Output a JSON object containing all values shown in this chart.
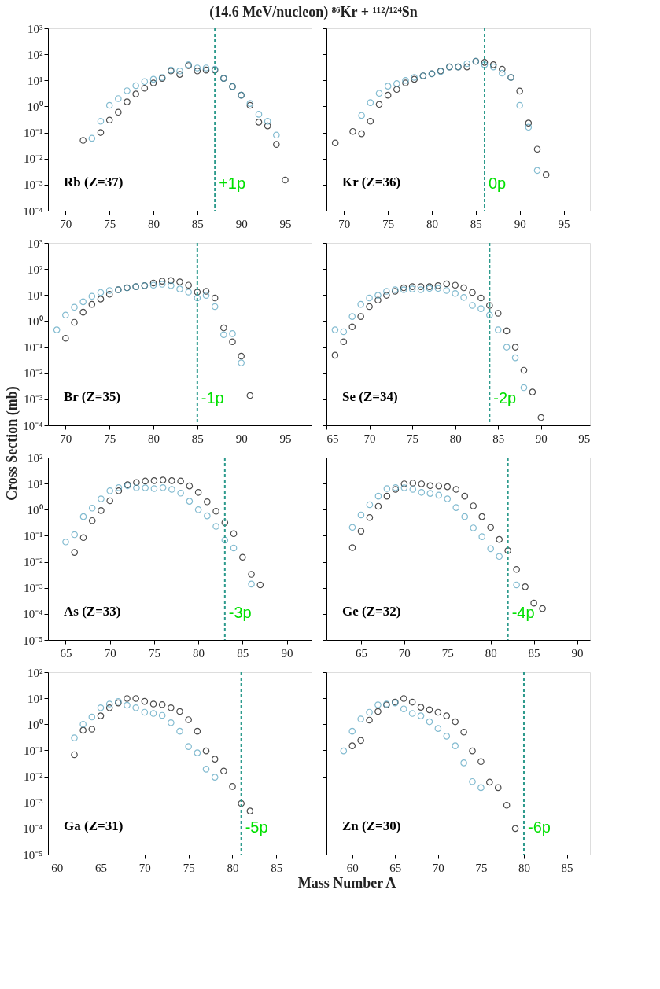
{
  "chart_data": [
    {
      "type": "scatter",
      "title": "(14.6 MeV/nucleon) ⁸⁶Kr + ¹¹²/¹²⁴Sn",
      "marker": "circle",
      "log": "y",
      "xlim": [
        68,
        98
      ],
      "xticks": [
        70,
        75,
        80,
        85,
        90,
        95
      ],
      "ylim": [
        0.0001,
        1000
      ],
      "yticks": [
        {
          "value": 0.0001,
          "label": "10⁻⁴"
        },
        {
          "value": 0.001,
          "label": "10⁻³"
        },
        {
          "value": 0.01,
          "label": "10⁻²"
        },
        {
          "value": 0.1,
          "label": "10⁻¹"
        },
        {
          "value": 1,
          "label": "10⁰"
        },
        {
          "value": 10,
          "label": "10¹"
        },
        {
          "value": 100,
          "label": "10²"
        },
        {
          "value": 1000,
          "label": "10³"
        }
      ],
      "ref_lines": [
        {
          "axis": "x",
          "value": 87,
          "label": "+1p",
          "color": "#2c9a8c",
          "line_style": "dashed"
        }
      ],
      "annotations": [
        "Rb (Z=37)"
      ],
      "series": [
        {
          "color": "#000000",
          "x": [
            72,
            74,
            75,
            76,
            77,
            78,
            79,
            80,
            81,
            82,
            83,
            84,
            85,
            86,
            87,
            88,
            89,
            90,
            91,
            92,
            93,
            94,
            95
          ],
          "values": [
            0.05,
            0.1,
            0.3,
            0.6,
            1.5,
            3,
            5,
            8,
            12,
            23,
            17,
            37,
            23,
            25,
            25,
            12,
            5.8,
            2.7,
            1.1,
            0.25,
            0.18,
            0.035,
            0.0015
          ]
        },
        {
          "color": "#4f9fbd",
          "x": [
            73,
            74,
            75,
            76,
            77,
            78,
            79,
            80,
            81,
            82,
            83,
            84,
            85,
            86,
            87,
            88,
            89,
            90,
            91,
            92,
            93,
            94
          ],
          "values": [
            0.06,
            0.27,
            1.1,
            2,
            4,
            6.3,
            9,
            11,
            13,
            25,
            23,
            40,
            30,
            30,
            27,
            12,
            5.8,
            2.7,
            1.3,
            0.5,
            0.27,
            0.08
          ]
        }
      ]
    },
    {
      "type": "scatter",
      "marker": "circle",
      "log": "y",
      "tick_labels": "x",
      "xlim": [
        68,
        98
      ],
      "xticks": [
        70,
        75,
        80,
        85,
        90,
        95
      ],
      "ylim": [
        0.0001,
        1000
      ],
      "yticks": [
        {
          "value": 0.0001,
          "label": null
        },
        {
          "value": 0.001,
          "label": null
        },
        {
          "value": 0.01,
          "label": null
        },
        {
          "value": 0.1,
          "label": null
        },
        {
          "value": 1,
          "label": null
        },
        {
          "value": 10,
          "label": null
        },
        {
          "value": 100,
          "label": null
        },
        {
          "value": 1000,
          "label": null
        }
      ],
      "ref_lines": [
        {
          "axis": "x",
          "value": 86,
          "label": "0p",
          "color": "#2c9a8c",
          "line_style": "dashed"
        }
      ],
      "annotations": [
        "Kr (Z=36)"
      ],
      "series": [
        {
          "color": "#000000",
          "x": [
            69,
            71,
            72,
            73,
            74,
            75,
            76,
            77,
            78,
            79,
            80,
            81,
            82,
            83,
            84,
            85,
            86,
            87,
            88,
            89,
            90,
            91,
            92,
            93
          ],
          "values": [
            0.04,
            0.11,
            0.09,
            0.27,
            1.2,
            2.7,
            4.5,
            8,
            11,
            15,
            18,
            23,
            33,
            33,
            33,
            54,
            49,
            40,
            27,
            13,
            3.9,
            0.23,
            0.023,
            0.0024
          ]
        },
        {
          "color": "#4f9fbd",
          "x": [
            72,
            73,
            74,
            75,
            76,
            77,
            78,
            79,
            80,
            81,
            82,
            83,
            84,
            85,
            86,
            87,
            88,
            89,
            90,
            91,
            92
          ],
          "values": [
            0.45,
            1.4,
            3.2,
            6,
            7.5,
            10,
            13,
            15,
            18,
            22,
            33,
            33,
            44,
            54,
            40,
            33,
            19,
            13,
            1.1,
            0.16,
            0.0035
          ]
        }
      ]
    },
    {
      "type": "scatter",
      "ylabel": "Cross Section (mb)",
      "marker": "circle",
      "log": "y",
      "xlim": [
        68,
        98
      ],
      "xticks": [
        70,
        75,
        80,
        85,
        90,
        95
      ],
      "ylim": [
        0.0001,
        1000
      ],
      "yticks": [
        {
          "value": 0.0001,
          "label": "10⁻⁴"
        },
        {
          "value": 0.001,
          "label": "10⁻³"
        },
        {
          "value": 0.01,
          "label": "10⁻²"
        },
        {
          "value": 0.1,
          "label": "10⁻¹"
        },
        {
          "value": 1,
          "label": "10⁰"
        },
        {
          "value": 10,
          "label": "10¹"
        },
        {
          "value": 100,
          "label": "10²"
        },
        {
          "value": 1000,
          "label": "10³"
        }
      ],
      "ref_lines": [
        {
          "axis": "x",
          "value": 85,
          "label": "-1p",
          "color": "#2c9a8c",
          "line_style": "dashed"
        }
      ],
      "annotations": [
        "Br (Z=35)"
      ],
      "series": [
        {
          "color": "#000000",
          "x": [
            70,
            71,
            72,
            73,
            74,
            75,
            76,
            77,
            78,
            79,
            80,
            81,
            82,
            83,
            84,
            85,
            86,
            87,
            88,
            89,
            90,
            91
          ],
          "values": [
            0.22,
            0.9,
            2.2,
            4.4,
            7,
            10.7,
            16,
            19,
            21,
            23,
            29,
            34,
            36,
            32,
            24,
            13,
            14,
            7.7,
            0.55,
            0.16,
            0.045,
            0.0014
          ]
        },
        {
          "color": "#4f9fbd",
          "x": [
            69,
            70,
            71,
            72,
            73,
            74,
            75,
            76,
            77,
            78,
            79,
            80,
            81,
            82,
            83,
            84,
            85,
            86,
            87,
            88,
            89,
            90
          ],
          "values": [
            0.46,
            1.7,
            3.4,
            5.5,
            9,
            12.6,
            15,
            16,
            19,
            21,
            23,
            24,
            26,
            23,
            17,
            13,
            7.7,
            9.7,
            3.6,
            0.3,
            0.33,
            0.025
          ]
        }
      ]
    },
    {
      "type": "scatter",
      "marker": "circle",
      "log": "y",
      "tick_labels": "x",
      "xlim": [
        65,
        95.7
      ],
      "xticks": [
        65,
        70,
        75,
        80,
        85,
        90,
        95
      ],
      "ylim": [
        0.0001,
        1000
      ],
      "yticks": [
        {
          "value": 0.0001,
          "label": null
        },
        {
          "value": 0.001,
          "label": null
        },
        {
          "value": 0.01,
          "label": null
        },
        {
          "value": 0.1,
          "label": null
        },
        {
          "value": 1,
          "label": null
        },
        {
          "value": 10,
          "label": null
        },
        {
          "value": 100,
          "label": null
        },
        {
          "value": 1000,
          "label": null
        }
      ],
      "ref_lines": [
        {
          "axis": "x",
          "value": 84,
          "label": "-2p",
          "color": "#2c9a8c",
          "line_style": "dashed"
        }
      ],
      "annotations": [
        "Se (Z=34)"
      ],
      "series": [
        {
          "color": "#000000",
          "x": [
            66,
            67,
            68,
            69,
            70,
            71,
            72,
            73,
            74,
            75,
            76,
            77,
            78,
            79,
            80,
            81,
            82,
            83,
            84,
            85,
            86,
            87,
            88,
            89,
            90
          ],
          "values": [
            0.049,
            0.16,
            0.6,
            1.5,
            3.6,
            6.4,
            9.8,
            14,
            19,
            21,
            21,
            21,
            23,
            27,
            24,
            19,
            12.6,
            7.7,
            4,
            2.0,
            0.42,
            0.1,
            0.013,
            0.0019,
            0.0002
          ]
        },
        {
          "color": "#4f9fbd",
          "x": [
            66,
            67,
            68,
            69,
            70,
            71,
            72,
            73,
            74,
            75,
            76,
            77,
            78,
            79,
            80,
            81,
            82,
            83,
            84,
            85,
            86,
            87,
            88
          ],
          "values": [
            0.46,
            0.39,
            1.5,
            4.4,
            7.7,
            9.8,
            14,
            16,
            16,
            17,
            16,
            18,
            18,
            15,
            11.5,
            8.1,
            4,
            3,
            1.7,
            0.46,
            0.1,
            0.039,
            0.0028
          ]
        }
      ]
    },
    {
      "type": "scatter",
      "marker": "circle",
      "log": "y",
      "xlim": [
        63,
        92.8
      ],
      "xticks": [
        65,
        70,
        75,
        80,
        85,
        90
      ],
      "ylim": [
        1e-05,
        100
      ],
      "yticks": [
        {
          "value": 1e-05,
          "label": "10⁻⁵"
        },
        {
          "value": 0.0001,
          "label": "10⁻⁴"
        },
        {
          "value": 0.001,
          "label": "10⁻³"
        },
        {
          "value": 0.01,
          "label": "10⁻²"
        },
        {
          "value": 0.1,
          "label": "10⁻¹"
        },
        {
          "value": 1,
          "label": "10⁰"
        },
        {
          "value": 10,
          "label": "10¹"
        },
        {
          "value": 100,
          "label": "10²"
        }
      ],
      "ref_lines": [
        {
          "axis": "x",
          "value": 83,
          "label": "-3p",
          "color": "#2c9a8c",
          "line_style": "dashed"
        }
      ],
      "annotations": [
        "As (Z=33)"
      ],
      "series": [
        {
          "color": "#000000",
          "x": [
            66,
            67,
            68,
            69,
            70,
            71,
            72,
            73,
            74,
            75,
            76,
            77,
            78,
            79,
            80,
            81,
            82,
            83,
            84,
            85,
            86,
            87
          ],
          "values": [
            0.023,
            0.085,
            0.38,
            0.93,
            2.2,
            5.3,
            9,
            11,
            12.5,
            13,
            13.7,
            13,
            12.5,
            8.1,
            4.6,
            2.0,
            0.87,
            0.32,
            0.12,
            0.015,
            0.0033,
            0.0013
          ]
        },
        {
          "color": "#4f9fbd",
          "x": [
            65,
            66,
            67,
            68,
            69,
            70,
            71,
            72,
            73,
            74,
            75,
            76,
            77,
            78,
            79,
            80,
            81,
            82,
            83,
            84,
            86
          ],
          "values": [
            0.058,
            0.11,
            0.54,
            1.15,
            2.6,
            5.3,
            7,
            8.3,
            6.9,
            6.9,
            6.4,
            7,
            6,
            4.3,
            2.1,
            1.0,
            0.58,
            0.23,
            0.068,
            0.034,
            0.0014
          ]
        }
      ]
    },
    {
      "type": "scatter",
      "marker": "circle",
      "log": "y",
      "tick_labels": "x",
      "xlim": [
        61,
        91.5
      ],
      "xticks": [
        65,
        70,
        75,
        80,
        85,
        90
      ],
      "ylim": [
        1e-05,
        100
      ],
      "yticks": [
        {
          "value": 1e-05,
          "label": null
        },
        {
          "value": 0.0001,
          "label": null
        },
        {
          "value": 0.001,
          "label": null
        },
        {
          "value": 0.01,
          "label": null
        },
        {
          "value": 0.1,
          "label": null
        },
        {
          "value": 1,
          "label": null
        },
        {
          "value": 10,
          "label": null
        },
        {
          "value": 100,
          "label": null
        }
      ],
      "ref_lines": [
        {
          "axis": "x",
          "value": 82,
          "label": "-4p",
          "color": "#2c9a8c",
          "line_style": "dashed"
        }
      ],
      "annotations": [
        "Ge (Z=32)"
      ],
      "series": [
        {
          "color": "#000000",
          "x": [
            64,
            65,
            66,
            67,
            68,
            69,
            70,
            71,
            72,
            73,
            74,
            75,
            76,
            77,
            78,
            79,
            80,
            81,
            82,
            83,
            84,
            85,
            86
          ],
          "values": [
            0.035,
            0.15,
            0.5,
            1.35,
            3.3,
            6,
            9.8,
            10.5,
            9.8,
            8.3,
            8.1,
            7.6,
            6,
            3.3,
            1.4,
            0.54,
            0.21,
            0.072,
            0.027,
            0.0051,
            0.0011,
            0.00026,
            0.00016
          ]
        },
        {
          "color": "#4f9fbd",
          "x": [
            64,
            65,
            66,
            67,
            68,
            69,
            70,
            71,
            72,
            73,
            74,
            75,
            76,
            77,
            78,
            79,
            80,
            81,
            83
          ],
          "values": [
            0.21,
            0.63,
            1.55,
            3.3,
            6.4,
            7,
            6.9,
            6,
            4.6,
            4.2,
            3.6,
            2.6,
            1.2,
            0.54,
            0.2,
            0.092,
            0.032,
            0.016,
            0.0013
          ]
        }
      ]
    },
    {
      "type": "scatter",
      "xlabel": "Mass Number A",
      "marker": "circle",
      "log": "y",
      "xlim": [
        59,
        89
      ],
      "xticks": [
        60,
        65,
        70,
        75,
        80,
        85
      ],
      "ylim": [
        1e-05,
        100
      ],
      "yticks": [
        {
          "value": 1e-05,
          "label": "10⁻⁵"
        },
        {
          "value": 0.0001,
          "label": "10⁻⁴"
        },
        {
          "value": 0.001,
          "label": "10⁻³"
        },
        {
          "value": 0.01,
          "label": "10⁻²"
        },
        {
          "value": 0.1,
          "label": "10⁻¹"
        },
        {
          "value": 1,
          "label": "10⁰"
        },
        {
          "value": 10,
          "label": "10¹"
        },
        {
          "value": 100,
          "label": "10²"
        }
      ],
      "ref_lines": [
        {
          "axis": "x",
          "value": 81,
          "label": "-5p",
          "color": "#2c9a8c",
          "line_style": "dashed"
        }
      ],
      "annotations": [
        "Ga (Z=31)"
      ],
      "series": [
        {
          "color": "#000000",
          "x": [
            62,
            63,
            64,
            65,
            66,
            67,
            68,
            69,
            70,
            71,
            72,
            73,
            74,
            75,
            76,
            77,
            78,
            79,
            80,
            81,
            82
          ],
          "values": [
            0.068,
            0.59,
            0.65,
            2.1,
            4.3,
            6.6,
            9.8,
            9.8,
            7.6,
            6,
            5.7,
            4.3,
            3.1,
            1.5,
            0.54,
            0.095,
            0.046,
            0.016,
            0.0041,
            0.00091,
            0.00047
          ]
        },
        {
          "color": "#4f9fbd",
          "x": [
            62,
            63,
            64,
            65,
            66,
            67,
            68,
            69,
            70,
            71,
            72,
            73,
            74,
            75,
            76,
            77,
            78
          ],
          "values": [
            0.3,
            1.0,
            1.9,
            4.3,
            6,
            7.5,
            5.4,
            4.3,
            2.9,
            2.6,
            2.2,
            1.15,
            0.54,
            0.14,
            0.08,
            0.019,
            0.0093
          ]
        }
      ]
    },
    {
      "type": "scatter",
      "marker": "circle",
      "log": "y",
      "tick_labels": "x",
      "xlim": [
        57,
        87.7
      ],
      "xticks": [
        60,
        65,
        70,
        75,
        80,
        85
      ],
      "ylim": [
        1e-05,
        100
      ],
      "yticks": [
        {
          "value": 1e-05,
          "label": null
        },
        {
          "value": 0.0001,
          "label": null
        },
        {
          "value": 0.001,
          "label": null
        },
        {
          "value": 0.01,
          "label": null
        },
        {
          "value": 0.1,
          "label": null
        },
        {
          "value": 1,
          "label": null
        },
        {
          "value": 10,
          "label": null
        },
        {
          "value": 100,
          "label": null
        }
      ],
      "ref_lines": [
        {
          "axis": "x",
          "value": 80,
          "label": "-6p",
          "color": "#2c9a8c",
          "line_style": "dashed"
        }
      ],
      "annotations": [
        "Zn (Z=30)"
      ],
      "series": [
        {
          "color": "#000000",
          "x": [
            60,
            61,
            62,
            63,
            64,
            65,
            66,
            67,
            68,
            69,
            70,
            71,
            72,
            73,
            74,
            75,
            76,
            77,
            78,
            79
          ],
          "values": [
            0.15,
            0.24,
            1.45,
            3.1,
            5.6,
            7.1,
            9.8,
            7.1,
            4.5,
            3.6,
            2.9,
            2.1,
            1.25,
            0.5,
            0.095,
            0.037,
            0.006,
            0.0037,
            0.00078,
            0.0001
          ]
        },
        {
          "color": "#4f9fbd",
          "x": [
            59,
            60,
            61,
            62,
            63,
            64,
            65,
            66,
            67,
            68,
            69,
            70,
            71,
            72,
            73,
            74,
            75
          ],
          "values": [
            0.095,
            0.54,
            1.6,
            2.9,
            5.6,
            6,
            6.6,
            3.9,
            2.6,
            2.1,
            1.25,
            0.69,
            0.35,
            0.15,
            0.033,
            0.0063,
            0.0037
          ]
        }
      ]
    }
  ]
}
